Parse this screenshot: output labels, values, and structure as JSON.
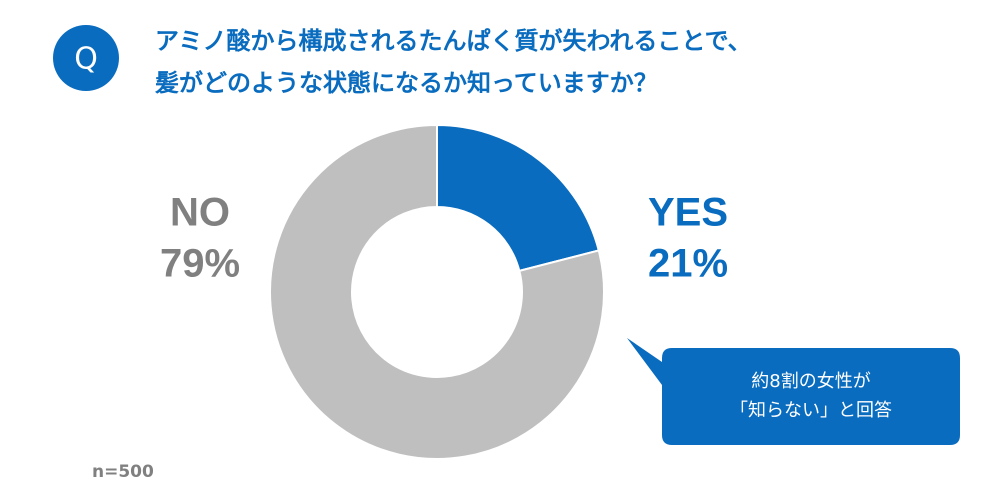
{
  "chart_data": {
    "type": "donut",
    "badge": "Q",
    "title": [
      "アミノ酸から構成されるたんぱく質が失われることで、",
      "髪がどのような状態になるか知っていますか？"
    ],
    "categories": [
      "YES",
      "NO"
    ],
    "values": [
      21,
      79
    ],
    "value_labels": [
      "21%",
      "79%"
    ],
    "colors": [
      "#0a6cbf",
      "#bfbfbf"
    ],
    "annotation": [
      "約8割の女性が",
      "「知らない」と回答"
    ],
    "note": "n=500"
  }
}
